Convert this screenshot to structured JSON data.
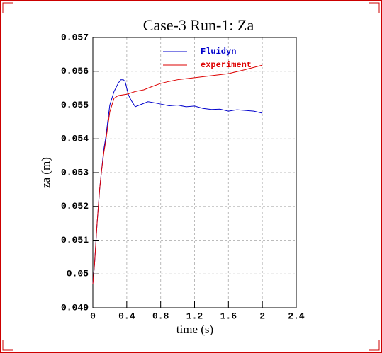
{
  "chart_data": {
    "type": "line",
    "title": "Case-3 Run-1: Za",
    "xlabel": "time (s)",
    "ylabel": "za (m)",
    "xlim": [
      0,
      2.4
    ],
    "ylim": [
      0.049,
      0.057
    ],
    "xticks": [
      0,
      0.4,
      0.8,
      1.2,
      1.6,
      2,
      2.4
    ],
    "yticks": [
      0.049,
      0.05,
      0.051,
      0.052,
      0.053,
      0.054,
      0.055,
      0.056,
      0.057
    ],
    "grid": true,
    "series": [
      {
        "name": "Fluidyn",
        "color": "#0000cc",
        "x": [
          0,
          0.02,
          0.05,
          0.08,
          0.1,
          0.13,
          0.15,
          0.2,
          0.25,
          0.3,
          0.33,
          0.36,
          0.38,
          0.4,
          0.42,
          0.45,
          0.5,
          0.55,
          0.6,
          0.65,
          0.7,
          0.8,
          0.9,
          1.0,
          1.1,
          1.2,
          1.3,
          1.4,
          1.5,
          1.6,
          1.7,
          1.8,
          1.9,
          2.0
        ],
        "values": [
          0.0497,
          0.0503,
          0.0515,
          0.0525,
          0.053,
          0.0537,
          0.054,
          0.055,
          0.0554,
          0.05565,
          0.05575,
          0.05575,
          0.0557,
          0.0555,
          0.0553,
          0.05515,
          0.05495,
          0.055,
          0.05505,
          0.0551,
          0.05508,
          0.05503,
          0.05498,
          0.055,
          0.05495,
          0.05497,
          0.0549,
          0.05487,
          0.05488,
          0.05482,
          0.05486,
          0.05484,
          0.05482,
          0.05476
        ]
      },
      {
        "name": "experiment",
        "color": "#dd0000",
        "x": [
          0,
          0.02,
          0.05,
          0.08,
          0.1,
          0.13,
          0.15,
          0.2,
          0.25,
          0.3,
          0.4,
          0.5,
          0.6,
          0.7,
          0.8,
          0.9,
          1.0,
          1.2,
          1.4,
          1.6,
          1.8,
          2.0
        ],
        "values": [
          0.0497,
          0.0503,
          0.0515,
          0.0525,
          0.053,
          0.0536,
          0.0539,
          0.0548,
          0.0552,
          0.05528,
          0.05532,
          0.0554,
          0.05545,
          0.05555,
          0.05564,
          0.0557,
          0.05575,
          0.05581,
          0.05587,
          0.05593,
          0.05605,
          0.05618
        ]
      }
    ]
  }
}
